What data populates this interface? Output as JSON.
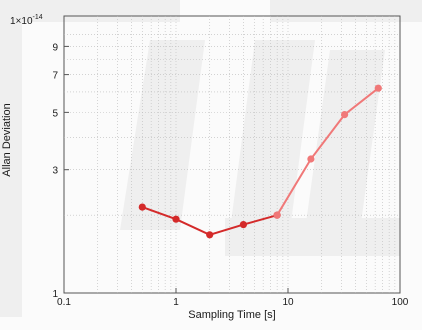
{
  "chart_data": {
    "type": "line",
    "xscale": "log",
    "yscale": "log",
    "xlim": [
      0.1,
      100
    ],
    "ylim": [
      1,
      10
    ],
    "xlabel": "Sampling Time [s]",
    "ylabel": "Allan Deviation",
    "y_multiplier_label": "1×10",
    "y_multiplier_exponent": "-14",
    "grid": true,
    "x_ticks": [
      {
        "value": 0.1,
        "label": "0.1"
      },
      {
        "value": 1,
        "label": "1"
      },
      {
        "value": 10,
        "label": "10"
      },
      {
        "value": 100,
        "label": "100"
      }
    ],
    "y_ticks": [
      {
        "value": 1,
        "label": "1"
      },
      {
        "value": 3,
        "label": "3"
      },
      {
        "value": 5,
        "label": "5"
      },
      {
        "value": 7,
        "label": "7"
      },
      {
        "value": 9,
        "label": "9"
      }
    ],
    "series": [
      {
        "color": "#d42a2a",
        "x": [
          0.5,
          1,
          2,
          4,
          8
        ],
        "y": [
          2.15,
          1.93,
          1.68,
          1.84,
          2.0
        ]
      },
      {
        "color": "#f07878",
        "x": [
          8,
          16,
          32,
          64
        ],
        "y": [
          2.0,
          3.3,
          4.9,
          6.2
        ]
      }
    ]
  },
  "colors": {
    "watermark": "#efefef",
    "grid": "#bbbbbb",
    "axes": "#555555"
  }
}
